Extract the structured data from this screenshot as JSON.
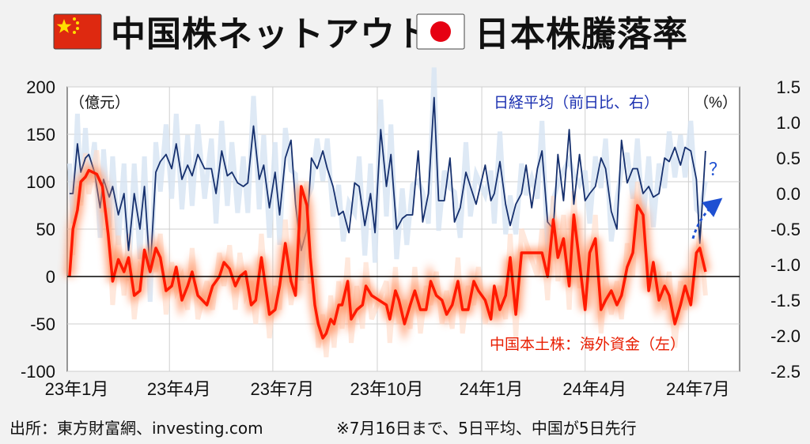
{
  "header": {
    "title_left": "中国株ネットアウト/",
    "title_right": "日本株騰落率",
    "flag_left": "china-flag-icon",
    "flag_right": "japan-flag-icon"
  },
  "footer": {
    "source": "出所：東方財富網、investing.com",
    "note": "※7月16日まで、5日平均、中国が5日先行"
  },
  "colors": {
    "china": "#ff1a00",
    "china_glow": "#ff9060",
    "japan": "#16306e",
    "japan_light": "#d6e3f3",
    "arrow": "#1e50d2"
  },
  "chart_data": {
    "type": "line",
    "left_axis": {
      "unit_label": "（億元）",
      "ticks": [
        200,
        150,
        100,
        50,
        0,
        -50,
        -100
      ],
      "ylim": [
        -100,
        200
      ]
    },
    "right_axis": {
      "unit_label": "（%）",
      "ticks": [
        1.5,
        1.0,
        0.5,
        0.0,
        -0.5,
        -1.0,
        -1.5,
        -2.0,
        -2.5
      ],
      "ylim": [
        -2.5,
        1.5
      ]
    },
    "x_tick_labels": [
      "23年1月",
      "23年4月",
      "23年7月",
      "23年10月",
      "24年1月",
      "24年4月",
      "24年7月"
    ],
    "grid": true,
    "annotation": "？",
    "series": [
      {
        "name": "中国本土株：海外資金（左）",
        "axis": "left",
        "x": [
          "2023-01-03",
          "2023-01-06",
          "2023-01-10",
          "2023-01-13",
          "2023-01-17",
          "2023-01-20",
          "2023-01-27",
          "2023-02-01",
          "2023-02-06",
          "2023-02-10",
          "2023-02-15",
          "2023-02-20",
          "2023-02-24",
          "2023-03-01",
          "2023-03-06",
          "2023-03-10",
          "2023-03-15",
          "2023-03-20",
          "2023-03-24",
          "2023-03-29",
          "2023-04-03",
          "2023-04-07",
          "2023-04-12",
          "2023-04-17",
          "2023-04-21",
          "2023-04-26",
          "2023-05-04",
          "2023-05-09",
          "2023-05-15",
          "2023-05-19",
          "2023-05-24",
          "2023-05-29",
          "2023-06-02",
          "2023-06-07",
          "2023-06-12",
          "2023-06-16",
          "2023-06-21",
          "2023-06-28",
          "2023-07-03",
          "2023-07-07",
          "2023-07-12",
          "2023-07-17",
          "2023-07-21",
          "2023-07-26",
          "2023-07-31",
          "2023-08-03",
          "2023-08-07",
          "2023-08-10",
          "2023-08-14",
          "2023-08-17",
          "2023-08-21",
          "2023-08-24",
          "2023-08-28",
          "2023-08-31",
          "2023-09-05",
          "2023-09-08",
          "2023-09-13",
          "2023-09-18",
          "2023-09-21",
          "2023-09-26",
          "2023-10-09",
          "2023-10-12",
          "2023-10-17",
          "2023-10-20",
          "2023-10-25",
          "2023-10-30",
          "2023-11-03",
          "2023-11-08",
          "2023-11-13",
          "2023-11-17",
          "2023-11-22",
          "2023-11-27",
          "2023-12-01",
          "2023-12-06",
          "2023-12-11",
          "2023-12-15",
          "2023-12-20",
          "2023-12-25",
          "2023-12-29",
          "2024-01-04",
          "2024-01-09",
          "2024-01-12",
          "2024-01-17",
          "2024-01-22",
          "2024-01-26",
          "2024-01-31",
          "2024-02-05",
          "2024-02-19",
          "2024-02-23",
          "2024-02-28",
          "2024-03-04",
          "2024-03-08",
          "2024-03-13",
          "2024-03-18",
          "2024-03-22",
          "2024-03-27",
          "2024-04-01",
          "2024-04-05",
          "2024-04-10",
          "2024-04-15",
          "2024-04-19",
          "2024-04-24",
          "2024-04-29",
          "2024-05-03",
          "2024-05-08",
          "2024-05-13",
          "2024-05-17",
          "2024-05-22",
          "2024-05-27",
          "2024-05-31",
          "2024-06-05",
          "2024-06-10",
          "2024-06-14",
          "2024-06-19",
          "2024-06-24",
          "2024-06-28",
          "2024-07-03",
          "2024-07-08",
          "2024-07-11",
          "2024-07-16"
        ],
        "values": [
          0,
          50,
          70,
          100,
          105,
          112,
          108,
          95,
          45,
          -5,
          18,
          5,
          20,
          -20,
          -15,
          28,
          5,
          30,
          20,
          -15,
          -10,
          10,
          -25,
          -10,
          5,
          -20,
          -30,
          -10,
          0,
          15,
          8,
          -10,
          0,
          5,
          -30,
          -25,
          20,
          -40,
          -35,
          -10,
          35,
          -5,
          -20,
          95,
          75,
          20,
          -30,
          -50,
          -65,
          -60,
          -45,
          -50,
          -30,
          -30,
          -5,
          -45,
          -35,
          -30,
          -10,
          -20,
          -30,
          -45,
          -15,
          -25,
          -50,
          -30,
          -15,
          -35,
          -35,
          -5,
          -20,
          -25,
          -40,
          -30,
          -5,
          -35,
          -35,
          -5,
          -15,
          -25,
          -45,
          -10,
          -35,
          -20,
          20,
          -40,
          25,
          25,
          25,
          0,
          60,
          20,
          40,
          -10,
          65,
          15,
          -35,
          25,
          40,
          -35,
          -25,
          -15,
          -30,
          -20,
          10,
          25,
          75,
          65,
          -15,
          15,
          -25,
          -10,
          -20,
          -50,
          -30,
          -10,
          -30,
          25,
          30,
          5
        ]
      },
      {
        "name": "日経平均（前日比、右）",
        "axis": "right",
        "x": [
          "2023-01-03",
          "2023-01-06",
          "2023-01-10",
          "2023-01-13",
          "2023-01-17",
          "2023-01-20",
          "2023-01-25",
          "2023-01-30",
          "2023-02-02",
          "2023-02-07",
          "2023-02-10",
          "2023-02-15",
          "2023-02-20",
          "2023-02-24",
          "2023-03-01",
          "2023-03-06",
          "2023-03-10",
          "2023-03-15",
          "2023-03-20",
          "2023-03-24",
          "2023-03-29",
          "2023-04-03",
          "2023-04-07",
          "2023-04-12",
          "2023-04-17",
          "2023-04-21",
          "2023-04-26",
          "2023-05-02",
          "2023-05-08",
          "2023-05-12",
          "2023-05-17",
          "2023-05-22",
          "2023-05-26",
          "2023-05-31",
          "2023-06-05",
          "2023-06-09",
          "2023-06-14",
          "2023-06-19",
          "2023-06-23",
          "2023-06-28",
          "2023-07-03",
          "2023-07-07",
          "2023-07-12",
          "2023-07-17",
          "2023-07-21",
          "2023-07-26",
          "2023-07-31",
          "2023-08-04",
          "2023-08-09",
          "2023-08-14",
          "2023-08-18",
          "2023-08-23",
          "2023-08-28",
          "2023-09-01",
          "2023-09-06",
          "2023-09-11",
          "2023-09-15",
          "2023-09-20",
          "2023-09-25",
          "2023-09-29",
          "2023-10-04",
          "2023-10-09",
          "2023-10-13",
          "2023-10-18",
          "2023-10-23",
          "2023-10-27",
          "2023-11-01",
          "2023-11-06",
          "2023-11-10",
          "2023-11-15",
          "2023-11-20",
          "2023-11-24",
          "2023-11-29",
          "2023-12-04",
          "2023-12-08",
          "2023-12-13",
          "2023-12-18",
          "2023-12-22",
          "2023-12-27",
          "2024-01-04",
          "2024-01-09",
          "2024-01-12",
          "2024-01-17",
          "2024-01-22",
          "2024-01-26",
          "2024-01-31",
          "2024-02-05",
          "2024-02-09",
          "2024-02-14",
          "2024-02-19",
          "2024-02-23",
          "2024-02-28",
          "2024-03-04",
          "2024-03-08",
          "2024-03-13",
          "2024-03-18",
          "2024-03-22",
          "2024-03-27",
          "2024-04-01",
          "2024-04-05",
          "2024-04-10",
          "2024-04-15",
          "2024-04-19",
          "2024-04-24",
          "2024-04-29",
          "2024-05-03",
          "2024-05-08",
          "2024-05-13",
          "2024-05-17",
          "2024-05-22",
          "2024-05-27",
          "2024-05-31",
          "2024-06-05",
          "2024-06-10",
          "2024-06-14",
          "2024-06-19",
          "2024-06-24",
          "2024-06-28",
          "2024-07-03",
          "2024-07-08",
          "2024-07-11",
          "2024-07-16"
        ],
        "values": [
          0.0,
          0.0,
          0.7,
          0.3,
          0.5,
          0.55,
          0.3,
          -0.2,
          0.2,
          -0.05,
          0.1,
          -0.3,
          0.0,
          -0.8,
          0.0,
          -0.5,
          0.1,
          -1.1,
          0.3,
          0.45,
          0.55,
          0.35,
          0.7,
          0.2,
          0.4,
          0.25,
          0.55,
          0.35,
          0.35,
          0.0,
          0.6,
          0.25,
          0.3,
          0.15,
          0.1,
          0.15,
          0.95,
          0.2,
          0.4,
          -0.2,
          0.3,
          -0.3,
          0.5,
          0.75,
          -0.15,
          -0.8,
          -0.5,
          0.5,
          0.35,
          0.6,
          0.35,
          0.1,
          -0.3,
          -0.25,
          -0.55,
          0.15,
          0.1,
          -0.45,
          0.0,
          -0.55,
          0.9,
          0.1,
          0.55,
          -0.5,
          -0.35,
          -0.3,
          -0.3,
          0.6,
          -0.4,
          0.0,
          1.35,
          -0.1,
          -0.1,
          0.5,
          -0.4,
          -0.2,
          0.3,
          0.1,
          -0.15,
          0.4,
          -0.1,
          0.0,
          0.45,
          -0.15,
          -0.45,
          -0.15,
          0.0,
          0.4,
          -0.2,
          0.35,
          0.6,
          -0.4,
          -0.5,
          0.55,
          -0.1,
          0.9,
          -0.15,
          0.55,
          -0.1,
          0.0,
          0.1,
          0.5,
          0.35,
          -0.25,
          -0.5,
          0.75,
          0.15,
          0.35,
          0.35,
          0.0,
          0.1,
          -0.05,
          0.0,
          0.5,
          0.45,
          0.65,
          0.4,
          0.65,
          0.6,
          0.2,
          -0.7,
          0.6
        ]
      }
    ]
  }
}
